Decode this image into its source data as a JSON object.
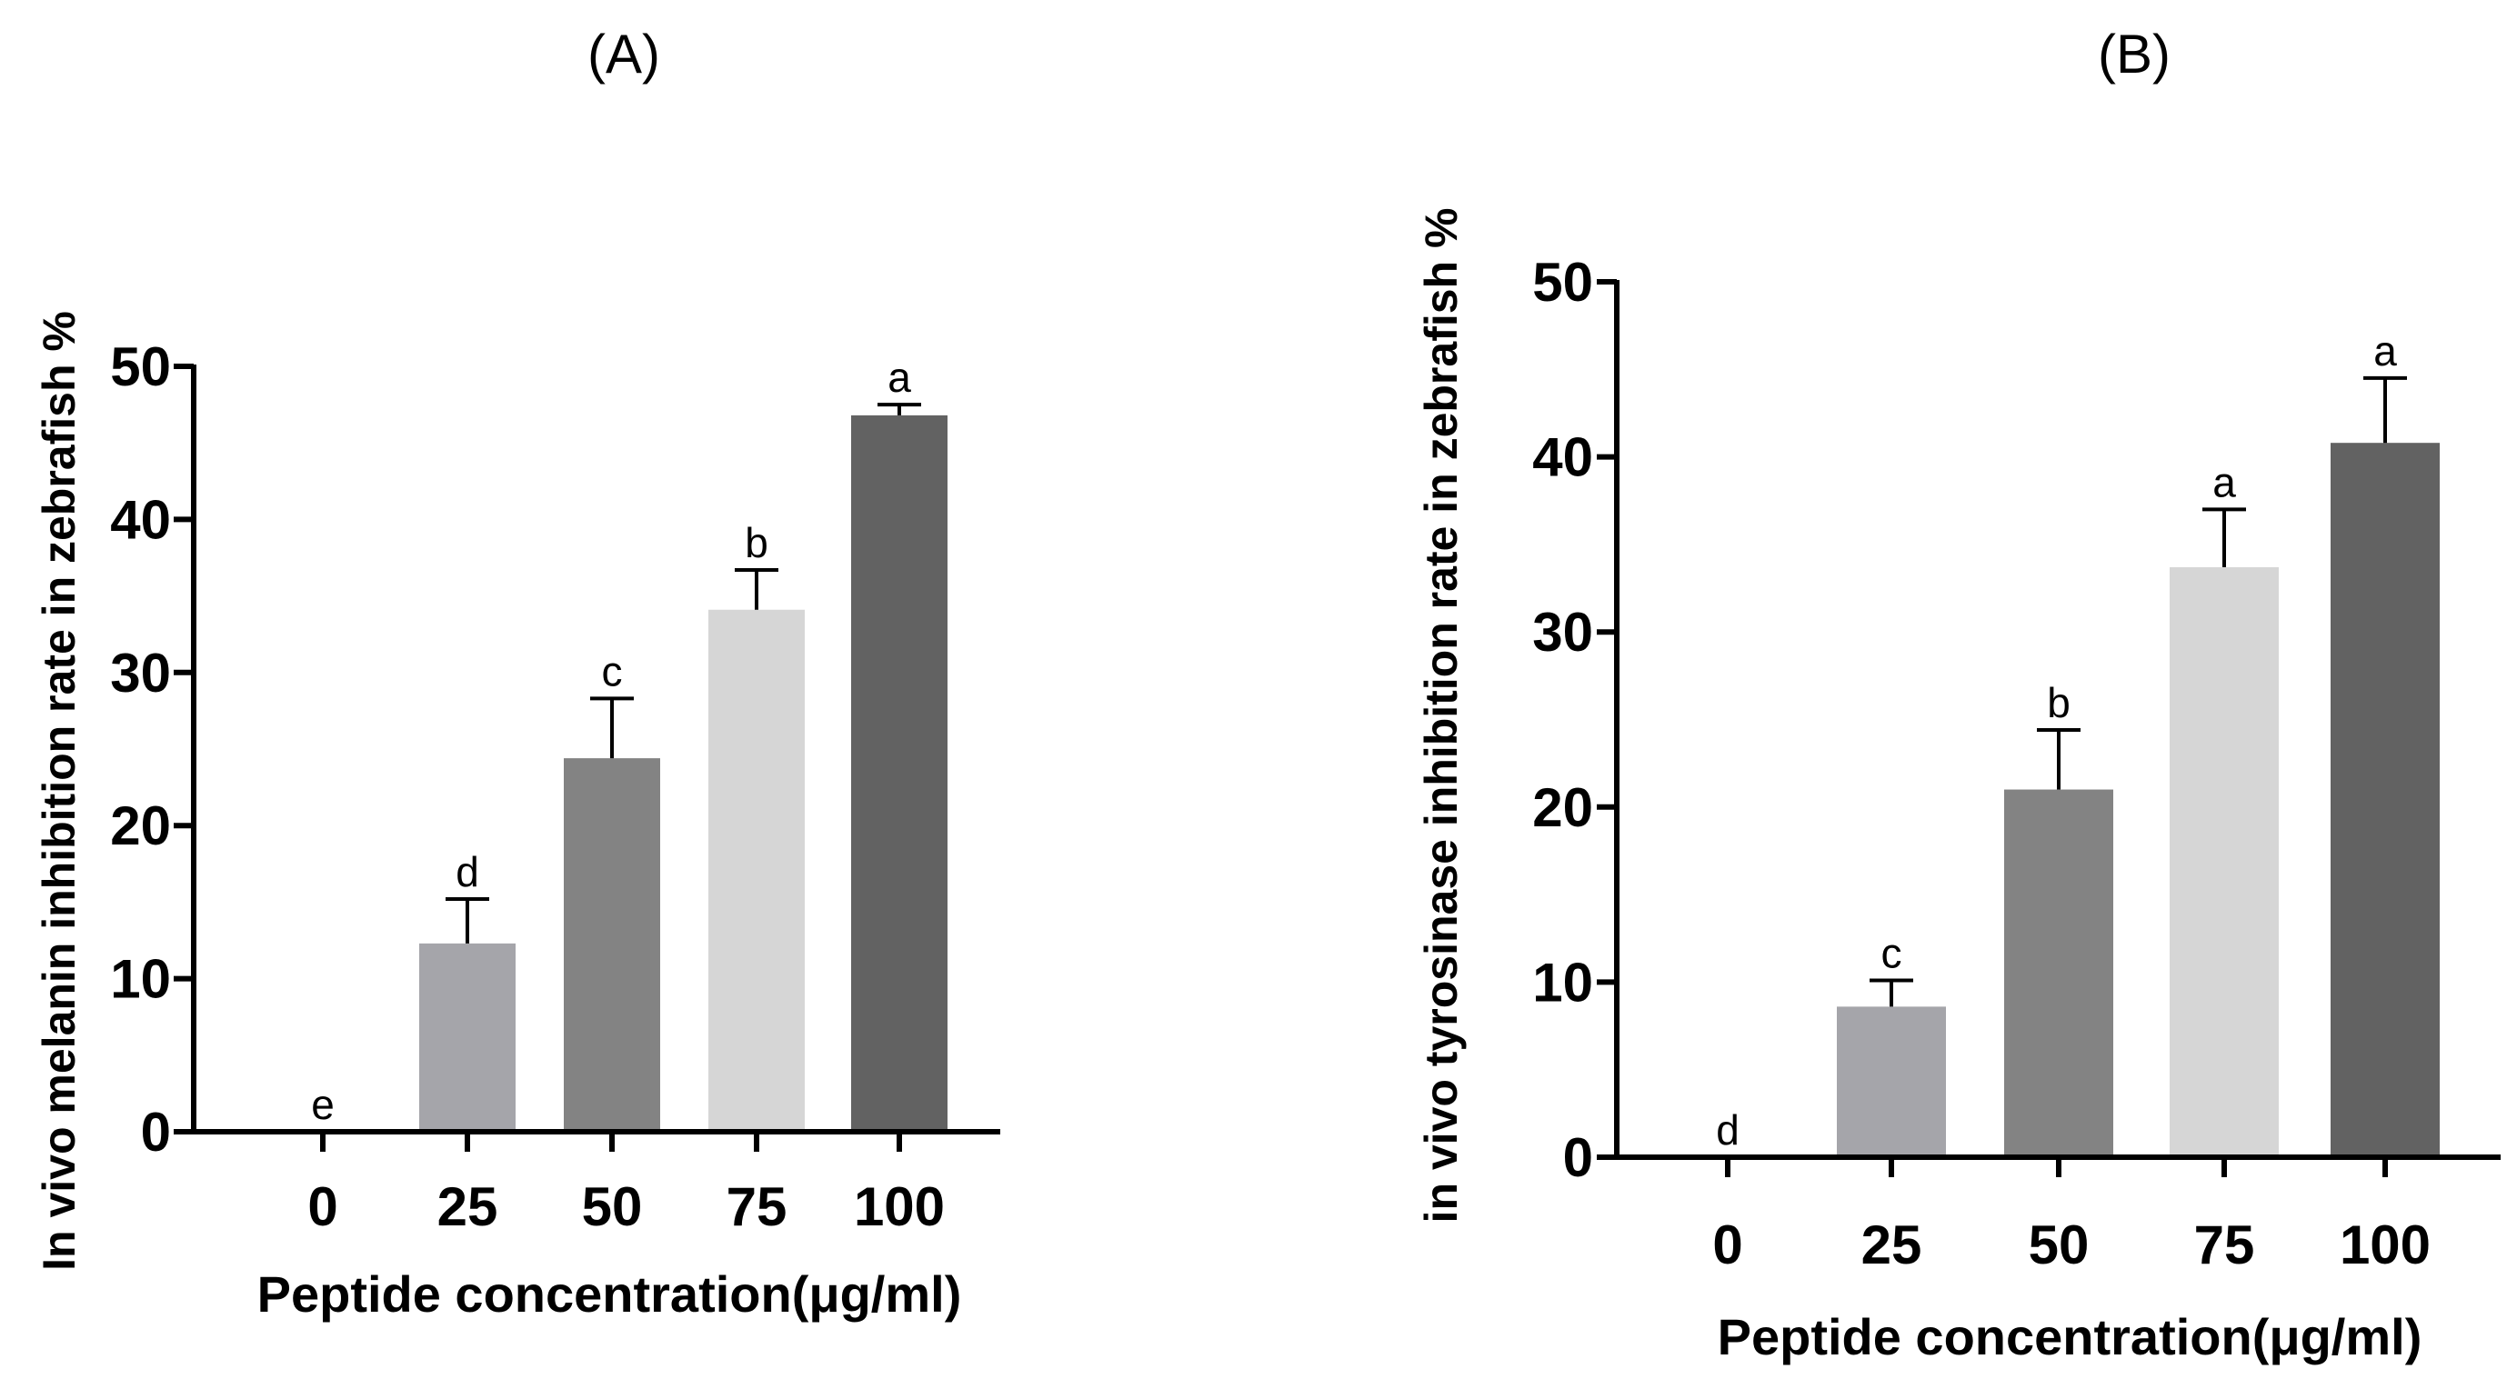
{
  "chart_data": [
    {
      "type": "bar",
      "panel": "(A)",
      "title": "(A)",
      "xlabel": "Peptide concentration(μg/ml)",
      "ylabel": "In vivo melanin inhibition rate in zebrafish %",
      "categories": [
        "0",
        "25",
        "50",
        "75",
        "100"
      ],
      "values": [
        0,
        12.3,
        24.4,
        34.1,
        46.8
      ],
      "errors": [
        0,
        2.9,
        3.9,
        2.6,
        0.7
      ],
      "significance": [
        "e",
        "d",
        "c",
        "b",
        "a"
      ],
      "colors": [
        "#ffffff",
        "#a5a5aa",
        "#838383",
        "#d6d6d6",
        "#626262"
      ],
      "ylim": [
        0,
        50
      ],
      "yticks": [
        0,
        10,
        20,
        30,
        40,
        50
      ],
      "grid": false
    },
    {
      "type": "bar",
      "panel": "(B)",
      "title": "(B)",
      "xlabel": "Peptide concentration(μg/ml)",
      "ylabel": "in vivo tyrosinase inhibition rate in zebrafish %",
      "categories": [
        "0",
        "25",
        "50",
        "75",
        "100"
      ],
      "values": [
        0,
        8.6,
        21.0,
        33.7,
        40.8
      ],
      "errors": [
        0,
        1.5,
        3.4,
        3.3,
        3.7
      ],
      "significance": [
        "d",
        "c",
        "b",
        "a",
        "a"
      ],
      "colors": [
        "#ffffff",
        "#a5a5aa",
        "#838383",
        "#d6d6d6",
        "#626262"
      ],
      "ylim": [
        0,
        50
      ],
      "yticks": [
        0,
        10,
        20,
        30,
        40,
        50
      ],
      "grid": false
    }
  ]
}
